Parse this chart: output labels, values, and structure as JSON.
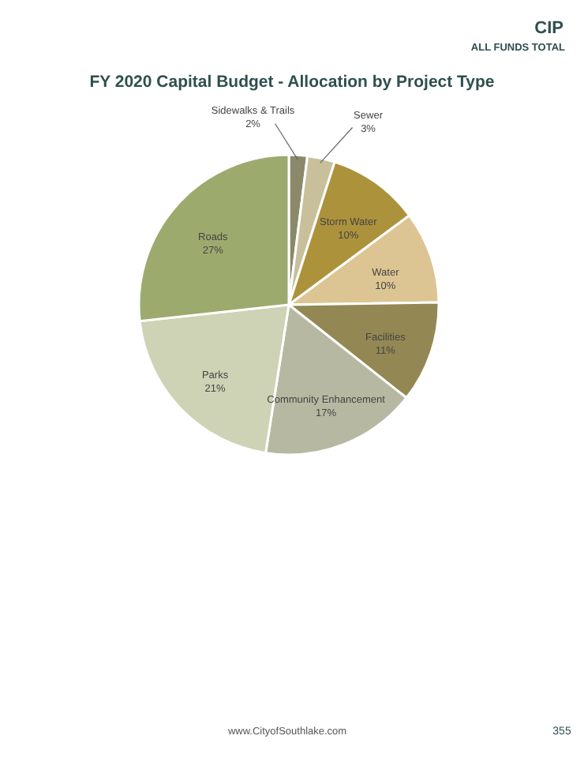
{
  "chart_data": {
    "type": "pie",
    "title": "FY 2020 Capital Budget - Allocation by Project Type",
    "categories": [
      "Sidewalks & Trails",
      "Sewer",
      "Storm Water",
      "Water",
      "Facilities",
      "Community Enhancement",
      "Parks",
      "Roads"
    ],
    "values": [
      2,
      3,
      10,
      10,
      11,
      17,
      21,
      27
    ],
    "value_labels": [
      "2%",
      "3%",
      "10%",
      "10%",
      "11%",
      "17%",
      "21%",
      "27%"
    ],
    "colors": [
      "#8a8a6a",
      "#c8c09a",
      "#ad923c",
      "#dcc592",
      "#938853",
      "#b7b8a2",
      "#cdd3b4",
      "#9daa6e"
    ],
    "annotations": [
      "CIP",
      "ALL FUNDS TOTAL",
      "www.CityofSouthlake.com",
      "355"
    ]
  }
}
